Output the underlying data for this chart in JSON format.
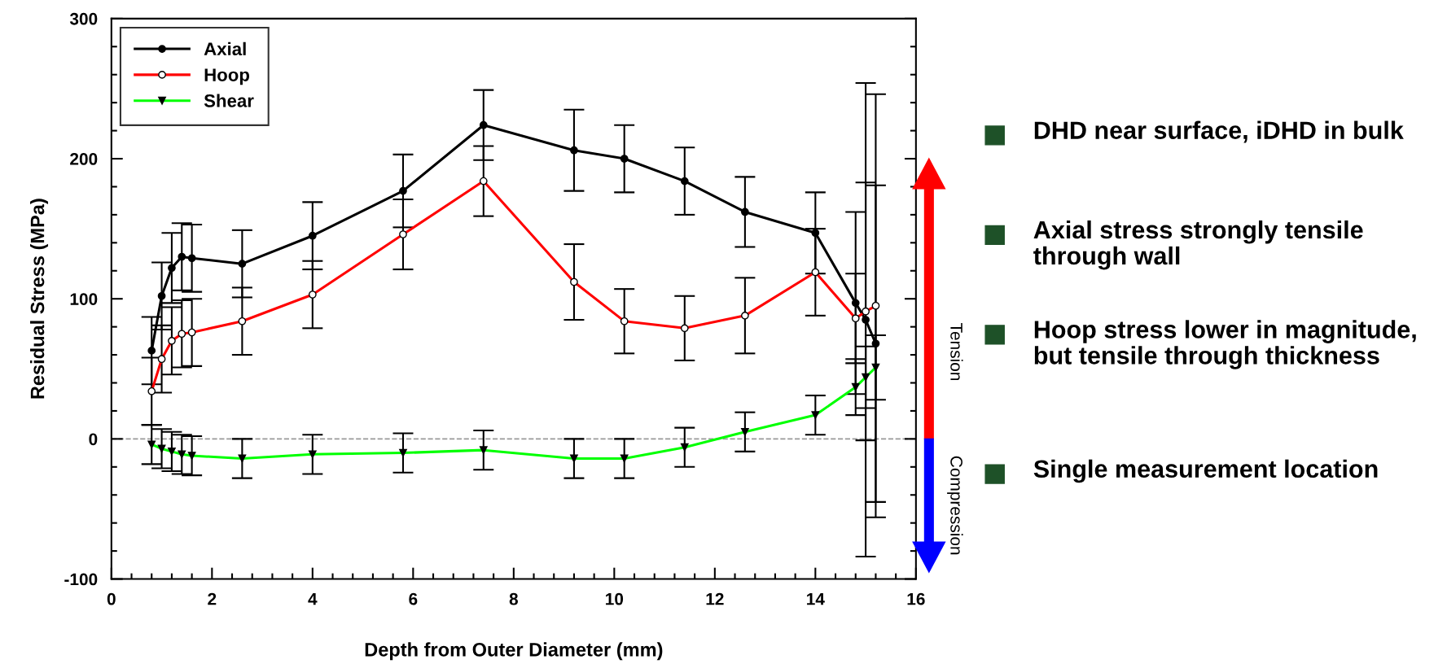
{
  "chart_data": {
    "type": "line",
    "xlabel": "Depth from Outer Diameter (mm)",
    "ylabel": "Residual Stress (MPa)",
    "xlim": [
      0,
      16
    ],
    "xticks": [
      0,
      2,
      4,
      6,
      8,
      10,
      12,
      14,
      16
    ],
    "ylim": [
      -100,
      300
    ],
    "yticks": [
      -100,
      0,
      100,
      200,
      300
    ],
    "x": [
      0.8,
      1.0,
      1.2,
      1.4,
      1.6,
      2.6,
      4.0,
      5.8,
      7.4,
      9.2,
      10.2,
      11.4,
      12.6,
      14.0,
      14.8,
      15.0,
      15.2
    ],
    "series": [
      {
        "name": "Axial",
        "color": "#000000",
        "marker": "circle",
        "values": [
          63,
          102,
          122,
          130,
          129,
          125,
          145,
          177,
          224,
          206,
          200,
          184,
          162,
          147,
          97,
          85,
          68
        ],
        "errors": [
          24,
          24,
          25,
          24,
          24,
          24,
          24,
          26,
          25,
          29,
          24,
          24,
          25,
          29,
          65,
          169,
          113
        ]
      },
      {
        "name": "Hoop",
        "color": "#ff0000",
        "marker": "circle_open",
        "values": [
          34,
          57,
          70,
          75,
          76,
          84,
          103,
          146,
          184,
          112,
          84,
          79,
          88,
          119,
          86,
          91,
          95
        ],
        "errors": [
          24,
          24,
          24,
          24,
          24,
          24,
          24,
          25,
          25,
          27,
          23,
          23,
          27,
          31,
          32,
          92,
          151
        ]
      },
      {
        "name": "Shear",
        "color": "#00ff00",
        "marker": "triangle_down",
        "values": [
          -4,
          -7,
          -9,
          -11,
          -12,
          -14,
          -11,
          -10,
          -8,
          -14,
          -14,
          -6,
          5,
          17,
          37,
          44,
          51
        ],
        "errors": [
          14,
          14,
          14,
          14,
          14,
          14,
          14,
          14,
          14,
          14,
          14,
          14,
          14,
          14,
          20,
          22,
          23
        ]
      }
    ],
    "ref_lines": [
      {
        "axis": "y",
        "value": 0,
        "color": "#999999",
        "line_style": "dashed"
      }
    ],
    "legend": "top left",
    "grid": false,
    "annotations": [
      "Tension",
      "Compression",
      "DHD near surface, iDHD in bulk",
      "Axial stress strongly tensile through wall",
      "Hoop stress lower in magnitude, but tensile through thickness",
      "Single measurement location"
    ]
  }
}
